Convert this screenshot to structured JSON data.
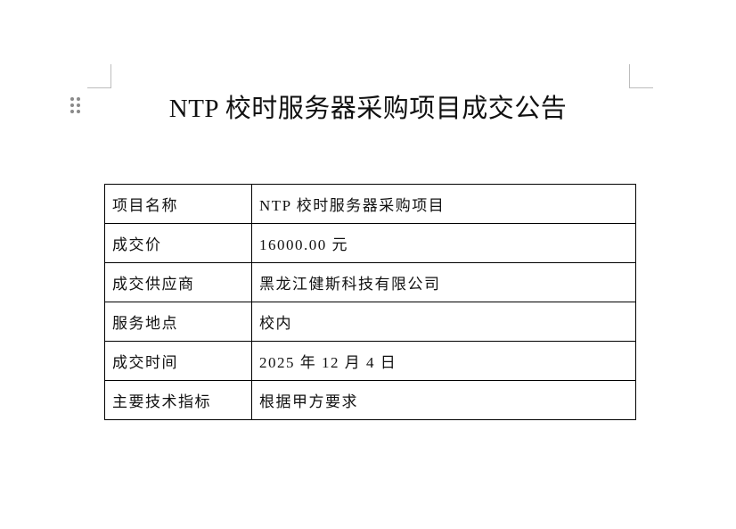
{
  "document": {
    "title": "NTP 校时服务器采购项目成交公告",
    "table": [
      {
        "label": "项目名称",
        "value": "NTP 校时服务器采购项目"
      },
      {
        "label": "成交价",
        "value": "16000.00 元"
      },
      {
        "label": "成交供应商",
        "value": "黑龙江健斯科技有限公司"
      },
      {
        "label": "服务地点",
        "value": "校内"
      },
      {
        "label": "成交时间",
        "value": "2025 年 12 月 4 日"
      },
      {
        "label": "主要技术指标",
        "value": "根据甲方要求"
      }
    ]
  }
}
